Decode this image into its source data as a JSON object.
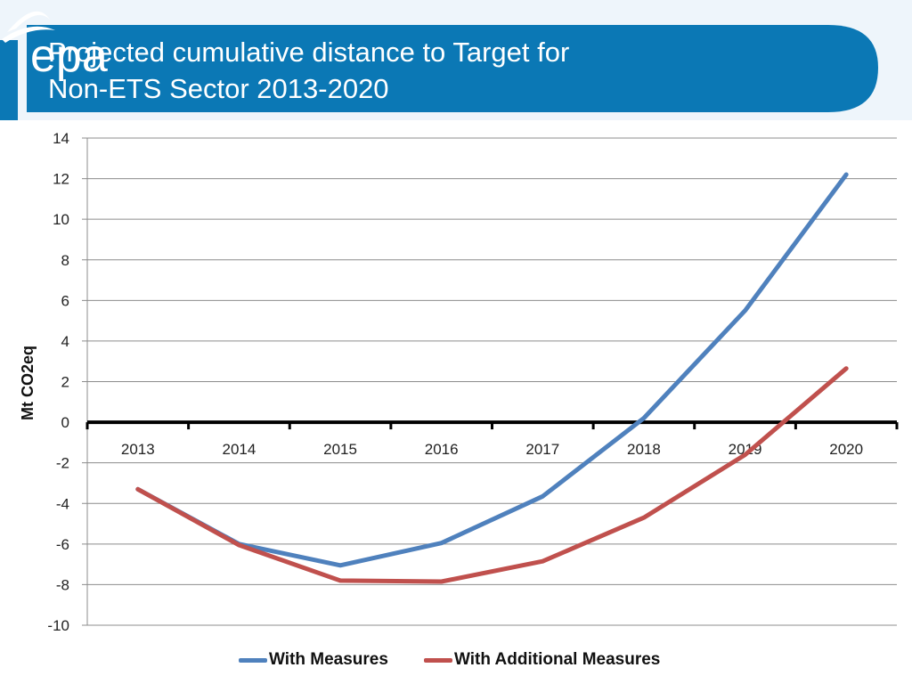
{
  "header": {
    "title_line1": "Projected cumulative distance to Target for",
    "title_line2": "Non-ETS Sector 2013-2020",
    "logo_text": "epa",
    "banner_color": "#0b78b5"
  },
  "chart_data": {
    "type": "line",
    "title": "Projected cumulative distance to Target for Non-ETS Sector 2013-2020",
    "xlabel": "",
    "ylabel": "Mt CO2eq",
    "categories": [
      "2013",
      "2014",
      "2015",
      "2016",
      "2017",
      "2018",
      "2019",
      "2020"
    ],
    "series": [
      {
        "name": "With Measures",
        "color": "#4f81bd",
        "values": [
          -3.3,
          -6.0,
          -7.05,
          -5.95,
          -3.65,
          0.2,
          5.5,
          12.2
        ]
      },
      {
        "name": "With Additional Measures",
        "color": "#c0504d",
        "values": [
          -3.3,
          -6.05,
          -7.8,
          -7.85,
          -6.85,
          -4.7,
          -1.6,
          2.65
        ]
      }
    ],
    "ylim": [
      -10,
      14
    ],
    "yticks": [
      "14",
      "12",
      "10",
      "8",
      "6",
      "4",
      "2",
      "0",
      "-2",
      "-4",
      "-6",
      "-8",
      "-10"
    ],
    "grid": true,
    "legend": "bottom"
  }
}
